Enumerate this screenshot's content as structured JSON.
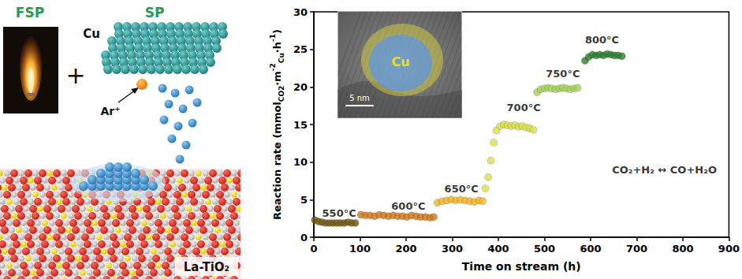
{
  "chart_data": {
    "type": "scatter",
    "xlabel": "Time on stream (h)",
    "ylabel": [
      {
        "text": "Reaction rate (mmol",
        "style": "normal"
      },
      {
        "text": "CO2",
        "style": "sub"
      },
      {
        "text": "·m",
        "style": "normal"
      },
      {
        "text": "-2",
        "style": "sup"
      },
      {
        "text": "Cu",
        "style": "sub"
      },
      {
        "text": "·h",
        "style": "normal"
      },
      {
        "text": "-1",
        "style": "sup"
      },
      {
        "text": ")",
        "style": "normal"
      }
    ],
    "xlim": [
      0,
      900
    ],
    "xticks": [
      0,
      100,
      200,
      300,
      400,
      500,
      600,
      700,
      800,
      900
    ],
    "ylim": [
      0,
      30
    ],
    "yticks": [
      0,
      5,
      10,
      15,
      20,
      25,
      30
    ],
    "grid": false,
    "marker": "circle",
    "series": [
      {
        "name": "550°C",
        "color": "#6e5a10",
        "label_at": [
          55,
          3.2
        ],
        "x": [
          2,
          10,
          18,
          26,
          34,
          42,
          50,
          58,
          66,
          74,
          82,
          90
        ],
        "values": [
          2.3,
          2.1,
          2.0,
          1.9,
          1.9,
          1.9,
          1.9,
          1.9,
          1.9,
          2.0,
          1.9,
          1.9
        ]
      },
      {
        "name": "600°C",
        "color": "#d07818",
        "label_at": [
          205,
          4.1
        ],
        "x": [
          102,
          112,
          122,
          132,
          142,
          152,
          162,
          172,
          182,
          192,
          202,
          212,
          222,
          232,
          242,
          252,
          260
        ],
        "values": [
          3.0,
          2.9,
          2.9,
          2.8,
          3.0,
          2.9,
          2.8,
          2.9,
          2.8,
          2.8,
          2.7,
          2.9,
          2.8,
          2.7,
          2.7,
          2.6,
          2.7
        ]
      },
      {
        "name": "650°C",
        "color": "#f0b428",
        "label_at": [
          320,
          6.5
        ],
        "x": [
          268,
          278,
          288,
          298,
          308,
          318,
          328,
          338,
          348,
          358,
          366
        ],
        "values": [
          4.6,
          4.8,
          4.9,
          5.0,
          4.9,
          5.0,
          4.9,
          4.8,
          4.7,
          4.9,
          4.8
        ]
      },
      {
        "name": "700°C",
        "color": "#d9e04a",
        "label_at": [
          455,
          17.3
        ],
        "x": [
          372,
          378,
          384,
          390,
          396,
          404,
          412,
          420,
          428,
          436,
          444,
          452,
          460,
          468,
          476
        ],
        "values": [
          6.5,
          8.0,
          10.2,
          12.6,
          14.2,
          14.8,
          15.0,
          14.9,
          14.8,
          14.9,
          14.7,
          14.8,
          14.6,
          14.5,
          14.3
        ]
      },
      {
        "name": "750°C",
        "color": "#a6d15a",
        "label_at": [
          540,
          21.8
        ],
        "x": [
          484,
          492,
          500,
          508,
          516,
          524,
          532,
          540,
          548,
          556,
          564,
          572
        ],
        "values": [
          19.3,
          19.7,
          19.8,
          19.9,
          19.8,
          19.7,
          19.8,
          19.9,
          19.8,
          19.7,
          19.8,
          19.9
        ]
      },
      {
        "name": "800°C",
        "color": "#2d7d2d",
        "label_at": [
          625,
          26.3
        ],
        "x": [
          588,
          596,
          604,
          612,
          620,
          628,
          636,
          644,
          652,
          660,
          668
        ],
        "values": [
          23.5,
          24.0,
          24.3,
          24.2,
          24.3,
          24.2,
          24.4,
          24.3,
          24.2,
          24.2,
          24.1
        ]
      }
    ],
    "annotations": [
      {
        "text": "CO₂+H₂ ↔ CO+H₂O",
        "x": 760,
        "y": 9
      }
    ],
    "inset": {
      "label": "Cu",
      "scale_bar": "5 nm"
    }
  },
  "schematic": {
    "fsp": "FSP",
    "sp": "SP",
    "metal": "Cu",
    "ion": "Ar⁺",
    "support": "La-TiO₂"
  }
}
